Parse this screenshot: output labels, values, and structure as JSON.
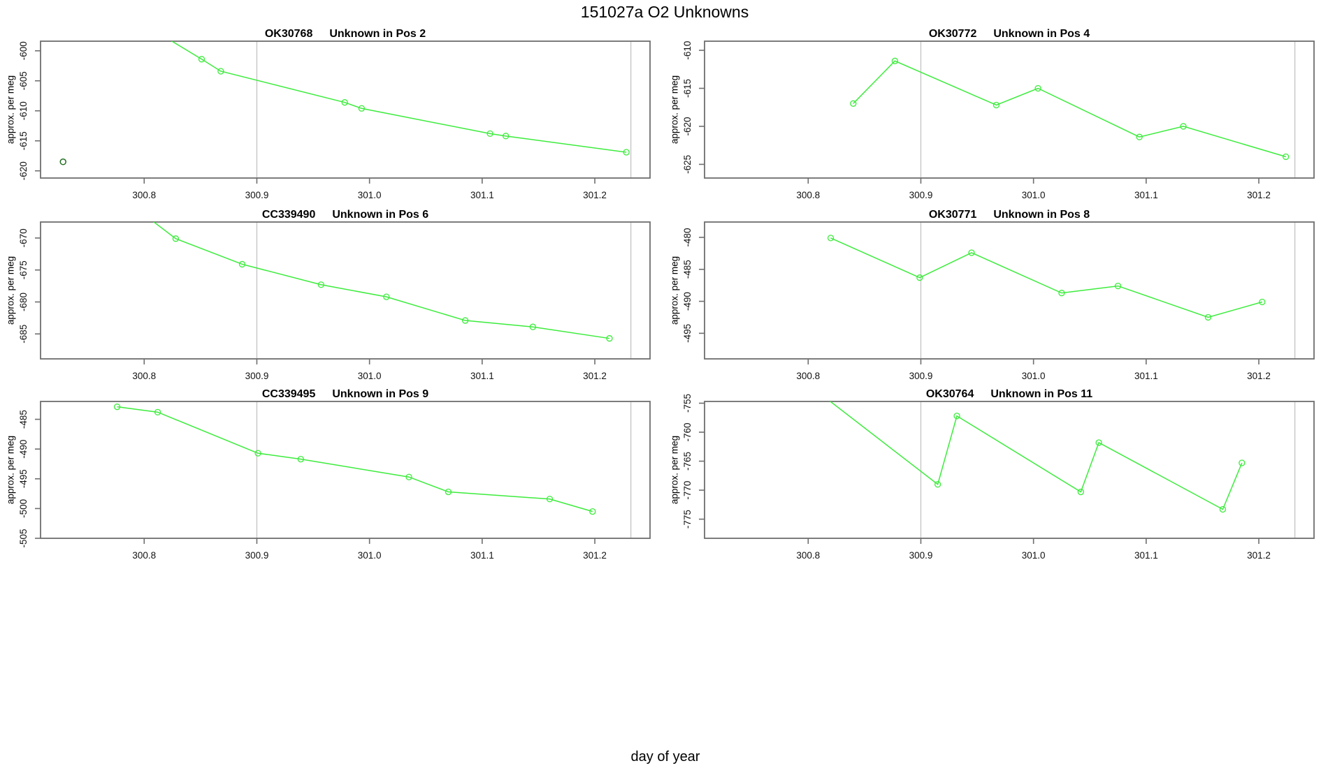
{
  "page": {
    "title": "151027a  O2 Unknowns",
    "x_axis_title": "day of year"
  },
  "colors": {
    "line": "#3cec3c",
    "marker": "#3cec3c",
    "dark_point": "#216e21",
    "reference_line": "#c6c6c6",
    "axis": "#6e6e6e",
    "text": "#111111",
    "background": "#ffffff"
  },
  "chart_data": [
    {
      "type": "line",
      "sample_id": "OK30768",
      "title": "Unknown in Pos 2",
      "ylabel": "approx. per meg",
      "xlabel": "day of year",
      "xlim": [
        300.708,
        301.249
      ],
      "ylim": [
        -621.2,
        -598.4
      ],
      "xticks": [
        300.8,
        300.9,
        301.0,
        301.1,
        301.2
      ],
      "xtick_labels": [
        "300.8",
        "300.9",
        "301.0",
        "301.1",
        "301.2"
      ],
      "yticks": [
        -620,
        -615,
        -610,
        -605,
        -600
      ],
      "vlines": [
        300.9,
        301.232
      ],
      "grid": false,
      "legend": null,
      "series": [
        {
          "name": "OK30768",
          "x": [
            300.8,
            300.851,
            300.868,
            300.978,
            300.993,
            301.107,
            301.121,
            301.228
          ],
          "y": [
            -595.6,
            -601.4,
            -603.4,
            -608.6,
            -609.6,
            -613.8,
            -614.2,
            -616.9
          ]
        }
      ],
      "isolated_points": [
        {
          "x": 300.728,
          "y": -618.5
        }
      ]
    },
    {
      "type": "line",
      "sample_id": "OK30772",
      "title": "Unknown in Pos 4",
      "ylabel": "approx. per meg",
      "xlabel": "day of year",
      "xlim": [
        300.708,
        301.249
      ],
      "ylim": [
        -626.8,
        -608.8
      ],
      "xticks": [
        300.8,
        300.9,
        301.0,
        301.1,
        301.2
      ],
      "xtick_labels": [
        "300.8",
        "300.9",
        "301.0",
        "301.1",
        "301.2"
      ],
      "yticks": [
        -625,
        -620,
        -615,
        -610
      ],
      "vlines": [
        300.9,
        301.232
      ],
      "grid": false,
      "legend": null,
      "series": [
        {
          "name": "OK30772",
          "x": [
            300.84,
            300.877,
            300.967,
            301.004,
            301.094,
            301.133,
            301.224
          ],
          "y": [
            -617.0,
            -611.4,
            -617.2,
            -615.0,
            -621.4,
            -620.0,
            -624.0
          ]
        }
      ],
      "isolated_points": []
    },
    {
      "type": "line",
      "sample_id": "CC339490",
      "title": "Unknown in Pos 6",
      "ylabel": "approx. per meg",
      "xlabel": "day of year",
      "xlim": [
        300.708,
        301.249
      ],
      "ylim": [
        -688.9,
        -667.5
      ],
      "xticks": [
        300.8,
        300.9,
        301.0,
        301.1,
        301.2
      ],
      "xtick_labels": [
        "300.8",
        "300.9",
        "301.0",
        "301.1",
        "301.2"
      ],
      "yticks": [
        -685,
        -680,
        -675,
        -670
      ],
      "vlines": [
        300.9,
        301.232
      ],
      "grid": false,
      "legend": null,
      "series": [
        {
          "name": "CC339490",
          "x": [
            300.79,
            300.828,
            300.887,
            300.957,
            301.015,
            301.085,
            301.145,
            301.213
          ],
          "y": [
            -665.0,
            -670.1,
            -674.1,
            -677.3,
            -679.2,
            -682.9,
            -683.9,
            -685.7
          ]
        }
      ],
      "isolated_points": []
    },
    {
      "type": "line",
      "sample_id": "OK30771",
      "title": "Unknown in Pos 8",
      "ylabel": "approx. per meg",
      "xlabel": "day of year",
      "xlim": [
        300.708,
        301.249
      ],
      "ylim": [
        -499.0,
        -477.6
      ],
      "xticks": [
        300.8,
        300.9,
        301.0,
        301.1,
        301.2
      ],
      "xtick_labels": [
        "300.8",
        "300.9",
        "301.0",
        "301.1",
        "301.2"
      ],
      "yticks": [
        -495,
        -490,
        -485,
        -480
      ],
      "vlines": [
        300.9,
        301.232
      ],
      "grid": false,
      "legend": null,
      "series": [
        {
          "name": "OK30771",
          "x": [
            300.82,
            300.899,
            300.945,
            301.025,
            301.075,
            301.155,
            301.203
          ],
          "y": [
            -480.1,
            -486.3,
            -482.4,
            -488.7,
            -487.6,
            -492.5,
            -490.1
          ]
        }
      ],
      "isolated_points": []
    },
    {
      "type": "line",
      "sample_id": "CC339495",
      "title": "Unknown in Pos 9",
      "ylabel": "approx. per meg",
      "xlabel": "day of year",
      "xlim": [
        300.708,
        301.249
      ],
      "ylim": [
        -505.0,
        -482.0
      ],
      "xticks": [
        300.8,
        300.9,
        301.0,
        301.1,
        301.2
      ],
      "xtick_labels": [
        "300.8",
        "300.9",
        "301.0",
        "301.1",
        "301.2"
      ],
      "yticks": [
        -505,
        -500,
        -495,
        -490,
        -485
      ],
      "vlines": [
        300.9,
        301.232
      ],
      "grid": false,
      "legend": null,
      "series": [
        {
          "name": "CC339495",
          "x": [
            300.776,
            300.812,
            300.901,
            300.939,
            301.035,
            301.07,
            301.16,
            301.198
          ],
          "y": [
            -482.9,
            -483.8,
            -490.7,
            -491.7,
            -494.7,
            -497.2,
            -498.4,
            -500.5
          ]
        }
      ],
      "isolated_points": []
    },
    {
      "type": "line",
      "sample_id": "OK30764",
      "title": "Unknown in Pos 11",
      "ylabel": "approx. per meg",
      "xlabel": "day of year",
      "xlim": [
        300.708,
        301.249
      ],
      "ylim": [
        -778.3,
        -754.7
      ],
      "xticks": [
        300.8,
        300.9,
        301.0,
        301.1,
        301.2
      ],
      "xtick_labels": [
        "300.8",
        "300.9",
        "301.0",
        "301.1",
        "301.2"
      ],
      "yticks": [
        -775,
        -770,
        -765,
        -760,
        -755
      ],
      "vlines": [
        300.9,
        301.232
      ],
      "grid": false,
      "legend": null,
      "series": [
        {
          "name": "OK30764",
          "x": [
            300.795,
            300.915,
            300.932,
            301.042,
            301.058,
            301.168,
            301.185
          ],
          "y": [
            -751.0,
            -769.0,
            -757.2,
            -770.3,
            -761.8,
            -773.3,
            -765.3
          ]
        }
      ],
      "isolated_points": []
    }
  ]
}
